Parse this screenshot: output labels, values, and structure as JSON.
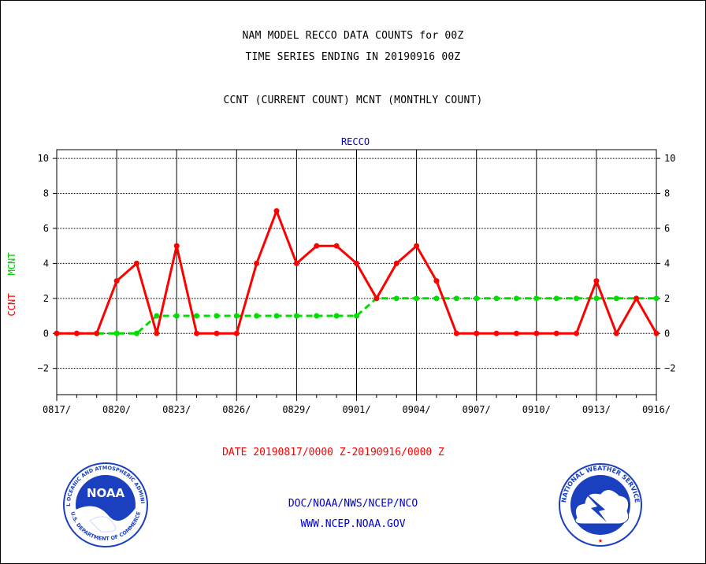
{
  "header": {
    "title_line1": "NAM MODEL RECCO DATA COUNTS for 00Z",
    "title_line2": "TIME SERIES ENDING IN 20190916 00Z",
    "title_line3": "CCNT (CURRENT COUNT) MCNT (MONTHLY COUNT)"
  },
  "chart_data": {
    "type": "line",
    "title": "RECCO",
    "ylabel_parts": [
      "CCNT",
      "MCNT"
    ],
    "xlabel": "DATE 20190817/0000 Z-20190916/0000 Z",
    "ylim": [
      -3.5,
      10.5
    ],
    "yticks": [
      10,
      8,
      6,
      4,
      2,
      0,
      -2
    ],
    "xticks": [
      "0817/",
      "0820/",
      "0823/",
      "0826/",
      "0829/",
      "0901/",
      "0904/",
      "0907/",
      "0910/",
      "0913/",
      "0916/"
    ],
    "x_days_total": 30,
    "grid": true,
    "series": [
      {
        "name": "CCNT",
        "color": "#ff0000",
        "style": "solid",
        "values": [
          0,
          0,
          0,
          3,
          4,
          0,
          5,
          0,
          0,
          0,
          4,
          7,
          4,
          5,
          5,
          4,
          2,
          4,
          5,
          3,
          0,
          0,
          0,
          0,
          0,
          0,
          0,
          3,
          0,
          2,
          0
        ]
      },
      {
        "name": "MCNT",
        "color": "#00dd00",
        "style": "dashed",
        "values": [
          0,
          0,
          0,
          0,
          0,
          1,
          1,
          1,
          1,
          1,
          1,
          1,
          1,
          1,
          1,
          1,
          2,
          2,
          2,
          2,
          2,
          2,
          2,
          2,
          2,
          2,
          2,
          2,
          2,
          2,
          2
        ]
      }
    ]
  },
  "footer": {
    "org_line": "DOC/NOAA/NWS/NCEP/NCO",
    "web_line": "WWW.NCEP.NOAA.GOV",
    "noaa_logo_text": "NOAA",
    "noaa_ring_text": "NATIONAL OCEANIC AND ATMOSPHERIC ADMINISTRATION",
    "noaa_dept_text": "U.S. DEPARTMENT OF COMMERCE",
    "nws_ring_text": "NATIONAL WEATHER SERVICE"
  },
  "colors": {
    "ccnt": "#ff0000",
    "mcnt": "#00dd00",
    "title_blue": "#0000cc",
    "noaa_blue": "#1a3fbf",
    "nws_blue": "#1a3fbf"
  }
}
